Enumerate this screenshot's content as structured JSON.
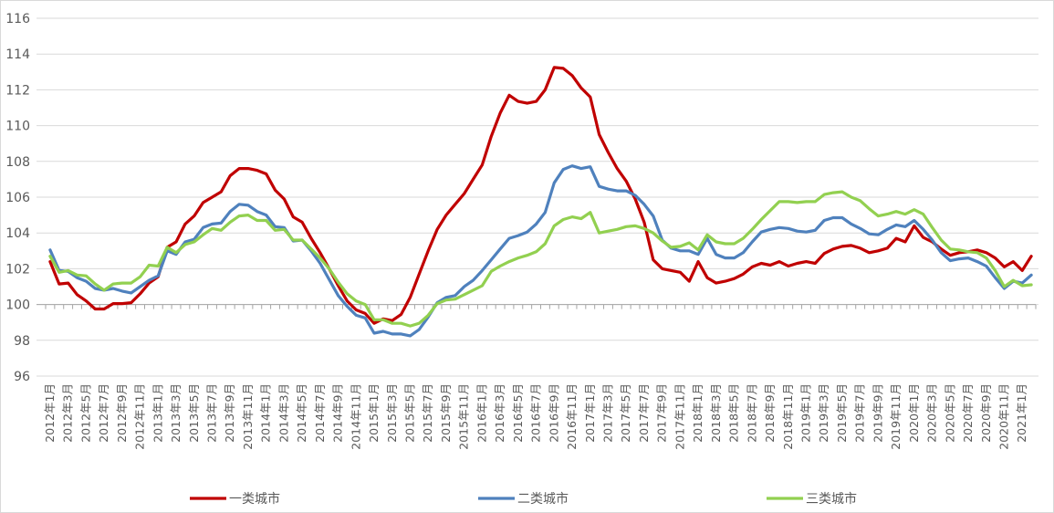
{
  "chart_data": {
    "type": "line",
    "title": "",
    "xlabel": "",
    "ylabel": "",
    "ylim": [
      96,
      116
    ],
    "y_ticks": [
      96,
      98,
      100,
      102,
      104,
      106,
      108,
      110,
      112,
      114,
      116
    ],
    "x_axis_crosses_at": 100,
    "grid": "horizontal",
    "legend_position": "bottom",
    "x_tick_labels": [
      "2012年1月",
      "2012年3月",
      "2012年5月",
      "2012年7月",
      "2012年9月",
      "2012年11月",
      "2013年1月",
      "2013年3月",
      "2013年5月",
      "2013年7月",
      "2013年9月",
      "2013年11月",
      "2014年1月",
      "2014年3月",
      "2014年5月",
      "2014年7月",
      "2014年9月",
      "2014年11月",
      "2015年1月",
      "2015年3月",
      "2015年5月",
      "2015年7月",
      "2015年9月",
      "2015年11月",
      "2016年1月",
      "2016年3月",
      "2016年5月",
      "2016年7月",
      "2016年9月",
      "2016年11月",
      "2017年1月",
      "2017年3月",
      "2017年5月",
      "2017年7月",
      "2017年9月",
      "2017年11月",
      "2018年1月",
      "2018年3月",
      "2018年5月",
      "2018年7月",
      "2018年9月",
      "2018年11月",
      "2019年1月",
      "2019年3月",
      "2019年5月",
      "2019年7月",
      "2019年9月",
      "2019年11月",
      "2020年1月",
      "2020年3月",
      "2020年5月",
      "2020年7月",
      "2020年9月",
      "2020年11月",
      "2021年1月"
    ],
    "series": [
      {
        "name": "一类城市",
        "color": "#c00000",
        "values": [
          102.4,
          101.15,
          101.2,
          100.55,
          100.2,
          99.75,
          99.75,
          100.05,
          100.05,
          100.1,
          100.6,
          101.2,
          101.55,
          103.2,
          103.5,
          104.5,
          104.95,
          105.7,
          106,
          106.3,
          107.2,
          107.6,
          107.6,
          107.5,
          107.3,
          106.4,
          105.9,
          104.9,
          104.6,
          103.7,
          102.9,
          102,
          101.05,
          100.2,
          99.7,
          99.5,
          98.95,
          99.2,
          99.1,
          99.45,
          100.4,
          101.7,
          103,
          104.2,
          105,
          105.6,
          106.2,
          107,
          107.8,
          109.4,
          110.7,
          111.7,
          111.35,
          111.25,
          111.35,
          112,
          113.25,
          113.2,
          112.8,
          112.1,
          111.6,
          109.5,
          108.5,
          107.6,
          106.9,
          105.9,
          104.6,
          102.5,
          102,
          101.9,
          101.8,
          101.3,
          102.4,
          101.5,
          101.2,
          101.3,
          101.45,
          101.7,
          102.1,
          102.3,
          102.2,
          102.4,
          102.15,
          102.3,
          102.4,
          102.3,
          102.85,
          103.1,
          103.25,
          103.3,
          103.15,
          102.9,
          103,
          103.15,
          103.7,
          103.5,
          104.4,
          103.75,
          103.5,
          103.1,
          102.75,
          102.9,
          102.95,
          103.05,
          102.9,
          102.6,
          102.1,
          102.4,
          101.9,
          102.7
        ]
      },
      {
        "name": "二类城市",
        "color": "#4f81bd",
        "values": [
          103.05,
          101.9,
          101.85,
          101.5,
          101.3,
          100.9,
          100.8,
          100.9,
          100.75,
          100.65,
          101,
          101.35,
          101.6,
          103,
          102.8,
          103.5,
          103.65,
          104.3,
          104.5,
          104.55,
          105.2,
          105.6,
          105.55,
          105.2,
          105,
          104.35,
          104.3,
          103.55,
          103.6,
          103,
          102.3,
          101.4,
          100.5,
          99.9,
          99.4,
          99.25,
          98.4,
          98.5,
          98.35,
          98.35,
          98.25,
          98.6,
          99.3,
          100.1,
          100.4,
          100.5,
          101,
          101.35,
          101.9,
          102.5,
          103.1,
          103.7,
          103.85,
          104.05,
          104.5,
          105.15,
          106.8,
          107.55,
          107.75,
          107.6,
          107.7,
          106.6,
          106.45,
          106.35,
          106.35,
          106.1,
          105.6,
          104.95,
          103.6,
          103.15,
          103,
          103,
          102.8,
          103.7,
          102.8,
          102.6,
          102.6,
          102.9,
          103.5,
          104.05,
          104.2,
          104.3,
          104.25,
          104.1,
          104.05,
          104.15,
          104.7,
          104.85,
          104.85,
          104.5,
          104.25,
          103.95,
          103.9,
          104.2,
          104.45,
          104.35,
          104.7,
          104.2,
          103.6,
          102.9,
          102.45,
          102.55,
          102.6,
          102.4,
          102.15,
          101.5,
          100.9,
          101.3,
          101.2,
          101.65
        ]
      },
      {
        "name": "三类城市",
        "color": "#92d050",
        "values": [
          102.7,
          101.8,
          101.9,
          101.65,
          101.6,
          101.15,
          100.8,
          101.15,
          101.2,
          101.2,
          101.55,
          102.2,
          102.15,
          103.2,
          102.9,
          103.35,
          103.5,
          103.9,
          104.25,
          104.15,
          104.6,
          104.95,
          105,
          104.7,
          104.7,
          104.15,
          104.2,
          103.6,
          103.6,
          103.1,
          102.6,
          102,
          101.25,
          100.6,
          100.2,
          100,
          99.15,
          99.15,
          98.95,
          98.95,
          98.8,
          98.95,
          99.4,
          100.05,
          100.25,
          100.3,
          100.55,
          100.8,
          101.05,
          101.85,
          102.15,
          102.4,
          102.6,
          102.75,
          102.95,
          103.4,
          104.4,
          104.75,
          104.9,
          104.8,
          105.15,
          104,
          104.1,
          104.2,
          104.35,
          104.4,
          104.25,
          104,
          103.55,
          103.2,
          103.25,
          103.45,
          103.05,
          103.9,
          103.5,
          103.4,
          103.4,
          103.7,
          104.2,
          104.75,
          105.25,
          105.75,
          105.75,
          105.7,
          105.75,
          105.75,
          106.15,
          106.25,
          106.3,
          106,
          105.8,
          105.35,
          104.95,
          105.05,
          105.2,
          105.05,
          105.3,
          105.05,
          104.3,
          103.6,
          103.1,
          103.05,
          102.95,
          102.9,
          102.6,
          101.9,
          101,
          101.35,
          101.05,
          101.1
        ]
      }
    ]
  }
}
